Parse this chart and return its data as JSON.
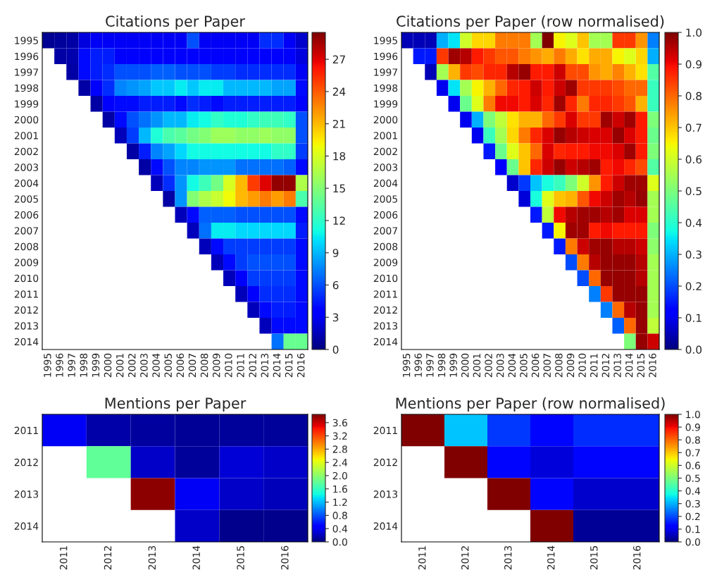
{
  "chart_data": [
    {
      "type": "heatmap",
      "title": "Citations per Paper",
      "categories": [
        "1995",
        "1996",
        "1997",
        "1998",
        "1999",
        "2000",
        "2001",
        "2002",
        "2003",
        "2004",
        "2005",
        "2006",
        "2007",
        "2008",
        "2009",
        "2010",
        "2011",
        "2012",
        "2013",
        "2014",
        "2015",
        "2016"
      ],
      "y_categories": [
        "1995",
        "1996",
        "1997",
        "1998",
        "1999",
        "2000",
        "2001",
        "2002",
        "2003",
        "2004",
        "2005",
        "2006",
        "2007",
        "2008",
        "2009",
        "2010",
        "2011",
        "2012",
        "2013",
        "2014"
      ],
      "cells": [
        [
          0.5,
          0.8,
          1.0,
          2.5,
          3,
          3,
          3,
          3,
          3,
          3,
          3,
          3,
          6,
          3,
          3,
          3,
          3,
          3,
          5,
          5,
          3,
          2
        ],
        [
          null,
          1,
          1.2,
          4,
          4.5,
          4.5,
          3.5,
          3.5,
          3.5,
          3.5,
          3.5,
          3.5,
          3.5,
          3.5,
          3.5,
          3.5,
          3.5,
          3.5,
          3.5,
          3.5,
          3.5,
          2.5
        ],
        [
          null,
          null,
          1,
          4,
          4.5,
          5,
          6,
          6,
          6,
          6.5,
          6.5,
          6,
          6,
          6,
          5.5,
          5.5,
          5,
          5,
          5,
          5,
          5,
          3
        ],
        [
          null,
          null,
          null,
          1,
          3.5,
          5,
          7.5,
          8,
          8.5,
          9.5,
          9.5,
          10.5,
          9.5,
          10.5,
          10.5,
          9,
          9,
          9,
          9,
          8.5,
          8.5,
          4
        ],
        [
          null,
          null,
          null,
          null,
          1,
          3.5,
          4,
          4,
          4.5,
          4.5,
          4.5,
          4,
          5,
          4.5,
          4,
          4.5,
          4.5,
          4.5,
          4.5,
          4.5,
          4.5,
          3.5
        ],
        [
          null,
          null,
          null,
          null,
          null,
          1,
          4,
          6,
          7,
          8,
          9,
          9,
          10.5,
          11,
          12,
          11.5,
          11.5,
          12,
          12.5,
          12.5,
          12,
          6
        ],
        [
          null,
          null,
          null,
          null,
          null,
          null,
          1.5,
          5.5,
          9,
          11.5,
          13,
          13.5,
          14.5,
          15,
          16,
          16,
          15.5,
          15.5,
          16,
          15.5,
          15.5,
          6
        ],
        [
          null,
          null,
          null,
          null,
          null,
          null,
          null,
          1,
          4.5,
          7.5,
          8.5,
          10,
          11,
          11,
          11,
          11,
          11,
          11,
          11,
          12,
          12,
          5.5
        ],
        [
          null,
          null,
          null,
          null,
          null,
          null,
          null,
          null,
          1,
          4,
          6,
          7.5,
          7.5,
          8,
          8,
          8,
          7,
          7,
          7,
          7,
          6.5,
          4
        ],
        [
          null,
          null,
          null,
          null,
          null,
          null,
          null,
          null,
          null,
          1.5,
          5,
          8,
          11,
          12.5,
          14.5,
          18,
          21,
          25,
          27,
          29,
          29,
          16.5
        ],
        [
          null,
          null,
          null,
          null,
          null,
          null,
          null,
          null,
          null,
          null,
          1,
          8,
          15,
          16.5,
          17.5,
          19,
          21,
          22,
          23,
          22,
          23,
          13
        ],
        [
          null,
          null,
          null,
          null,
          null,
          null,
          null,
          null,
          null,
          null,
          null,
          1.5,
          4,
          6.5,
          6.5,
          6.5,
          6,
          6,
          6,
          6,
          6,
          4
        ],
        [
          null,
          null,
          null,
          null,
          null,
          null,
          null,
          null,
          null,
          null,
          null,
          null,
          1.5,
          7,
          10.5,
          10.5,
          10,
          10,
          10,
          10,
          10,
          4.5
        ],
        [
          null,
          null,
          null,
          null,
          null,
          null,
          null,
          null,
          null,
          null,
          null,
          null,
          null,
          1.5,
          4,
          5.5,
          5.5,
          5.5,
          5.5,
          5.5,
          5.5,
          4
        ],
        [
          null,
          null,
          null,
          null,
          null,
          null,
          null,
          null,
          null,
          null,
          null,
          null,
          null,
          null,
          1.5,
          4,
          5.5,
          6,
          6,
          6,
          6,
          4
        ],
        [
          null,
          null,
          null,
          null,
          null,
          null,
          null,
          null,
          null,
          null,
          null,
          null,
          null,
          null,
          null,
          1.5,
          3.5,
          5.5,
          5.5,
          5.5,
          5.5,
          4
        ],
        [
          null,
          null,
          null,
          null,
          null,
          null,
          null,
          null,
          null,
          null,
          null,
          null,
          null,
          null,
          null,
          null,
          1.5,
          3.5,
          5,
          5,
          5,
          4
        ],
        [
          null,
          null,
          null,
          null,
          null,
          null,
          null,
          null,
          null,
          null,
          null,
          null,
          null,
          null,
          null,
          null,
          null,
          1.5,
          4,
          4.5,
          4.5,
          4
        ],
        [
          null,
          null,
          null,
          null,
          null,
          null,
          null,
          null,
          null,
          null,
          null,
          null,
          null,
          null,
          null,
          null,
          null,
          null,
          1.5,
          4,
          4,
          4
        ],
        [
          null,
          null,
          null,
          null,
          null,
          null,
          null,
          null,
          null,
          null,
          null,
          null,
          null,
          null,
          null,
          null,
          null,
          null,
          null,
          7,
          14,
          14
        ]
      ],
      "clim": [
        0,
        29.5
      ],
      "cticks": [
        0,
        3,
        6,
        9,
        12,
        15,
        18,
        21,
        24,
        27
      ]
    },
    {
      "type": "heatmap",
      "title": "Citations per Paper (row normalised)",
      "categories": [
        "1995",
        "1996",
        "1997",
        "1998",
        "1999",
        "2000",
        "2001",
        "2002",
        "2003",
        "2004",
        "2005",
        "2006",
        "2007",
        "2008",
        "2009",
        "2010",
        "2011",
        "2012",
        "2013",
        "2014",
        "2015",
        "2016"
      ],
      "y_categories": [
        "1995",
        "1996",
        "1997",
        "1998",
        "1999",
        "2000",
        "2001",
        "2002",
        "2003",
        "2004",
        "2005",
        "2006",
        "2007",
        "2008",
        "2009",
        "2010",
        "2011",
        "2012",
        "2013",
        "2014"
      ],
      "cells": [
        [
          0.05,
          0.05,
          0.05,
          0.3,
          0.35,
          0.6,
          0.68,
          0.68,
          0.78,
          0.78,
          0.78,
          0.55,
          1.0,
          0.65,
          0.62,
          0.7,
          0.55,
          0.55,
          0.85,
          0.85,
          0.75,
          0.25
        ],
        [
          null,
          0.15,
          0.15,
          0.85,
          0.97,
          0.95,
          0.88,
          0.85,
          0.82,
          0.82,
          0.78,
          0.75,
          0.73,
          0.78,
          0.73,
          0.67,
          0.73,
          0.73,
          0.65,
          0.62,
          0.68,
          0.3
        ],
        [
          null,
          null,
          0.05,
          0.55,
          0.72,
          0.85,
          0.83,
          0.87,
          0.87,
          0.95,
          0.98,
          0.88,
          0.88,
          0.93,
          0.83,
          0.83,
          0.75,
          0.73,
          0.77,
          0.72,
          0.67,
          0.45
        ],
        [
          null,
          null,
          null,
          0.1,
          0.35,
          0.55,
          0.65,
          0.72,
          0.8,
          0.87,
          0.88,
          0.93,
          0.88,
          0.93,
          0.97,
          0.85,
          0.85,
          0.85,
          0.83,
          0.8,
          0.8,
          0.42
        ],
        [
          null,
          null,
          null,
          null,
          0.1,
          0.48,
          0.62,
          0.78,
          0.9,
          0.9,
          0.88,
          0.92,
          0.87,
          0.97,
          0.87,
          0.78,
          0.87,
          0.87,
          0.85,
          0.82,
          0.72,
          0.42
        ],
        [
          null,
          null,
          null,
          null,
          null,
          0.1,
          0.3,
          0.5,
          0.58,
          0.67,
          0.72,
          0.72,
          0.8,
          0.85,
          0.92,
          0.85,
          0.85,
          0.97,
          0.93,
          0.97,
          0.88,
          0.5
        ],
        [
          null,
          null,
          null,
          null,
          null,
          null,
          0.1,
          0.42,
          0.55,
          0.68,
          0.78,
          0.87,
          0.92,
          0.98,
          0.95,
          0.93,
          0.92,
          0.92,
          0.98,
          0.92,
          0.88,
          0.48
        ],
        [
          null,
          null,
          null,
          null,
          null,
          null,
          null,
          0.15,
          0.48,
          0.62,
          0.7,
          0.8,
          0.92,
          0.87,
          0.88,
          0.88,
          0.9,
          0.9,
          0.92,
          0.97,
          0.88,
          0.5
        ],
        [
          null,
          null,
          null,
          null,
          null,
          null,
          null,
          null,
          0.12,
          0.48,
          0.7,
          0.87,
          0.93,
          0.98,
          0.93,
          0.95,
          0.97,
          0.88,
          0.9,
          0.87,
          0.83,
          0.45
        ],
        [
          null,
          null,
          null,
          null,
          null,
          null,
          null,
          null,
          null,
          0.07,
          0.18,
          0.32,
          0.38,
          0.42,
          0.5,
          0.6,
          0.75,
          0.88,
          0.93,
          0.97,
          0.97,
          0.62
        ],
        [
          null,
          null,
          null,
          null,
          null,
          null,
          null,
          null,
          null,
          null,
          0.08,
          0.38,
          0.62,
          0.7,
          0.72,
          0.82,
          0.9,
          0.93,
          0.97,
          0.95,
          0.98,
          0.55
        ],
        [
          null,
          null,
          null,
          null,
          null,
          null,
          null,
          null,
          null,
          null,
          null,
          0.15,
          0.58,
          0.9,
          0.95,
          0.97,
          0.97,
          0.95,
          0.97,
          0.92,
          0.92,
          0.55
        ],
        [
          null,
          null,
          null,
          null,
          null,
          null,
          null,
          null,
          null,
          null,
          null,
          null,
          0.15,
          0.65,
          0.97,
          0.97,
          0.88,
          0.9,
          0.88,
          0.88,
          0.88,
          0.5
        ],
        [
          null,
          null,
          null,
          null,
          null,
          null,
          null,
          null,
          null,
          null,
          null,
          null,
          null,
          0.15,
          0.78,
          0.93,
          0.97,
          0.98,
          0.95,
          0.95,
          0.93,
          0.52
        ],
        [
          null,
          null,
          null,
          null,
          null,
          null,
          null,
          null,
          null,
          null,
          null,
          null,
          null,
          null,
          0.2,
          0.78,
          0.95,
          0.98,
          0.98,
          0.98,
          0.95,
          0.55
        ],
        [
          null,
          null,
          null,
          null,
          null,
          null,
          null,
          null,
          null,
          null,
          null,
          null,
          null,
          null,
          null,
          0.2,
          0.8,
          0.98,
          0.98,
          0.98,
          0.95,
          0.55
        ],
        [
          null,
          null,
          null,
          null,
          null,
          null,
          null,
          null,
          null,
          null,
          null,
          null,
          null,
          null,
          null,
          null,
          0.25,
          0.85,
          0.98,
          0.98,
          0.98,
          0.55
        ],
        [
          null,
          null,
          null,
          null,
          null,
          null,
          null,
          null,
          null,
          null,
          null,
          null,
          null,
          null,
          null,
          null,
          null,
          0.25,
          0.8,
          0.95,
          0.98,
          0.55
        ],
        [
          null,
          null,
          null,
          null,
          null,
          null,
          null,
          null,
          null,
          null,
          null,
          null,
          null,
          null,
          null,
          null,
          null,
          null,
          0.22,
          0.8,
          0.98,
          0.58
        ],
        [
          null,
          null,
          null,
          null,
          null,
          null,
          null,
          null,
          null,
          null,
          null,
          null,
          null,
          null,
          null,
          null,
          null,
          null,
          null,
          0.5,
          0.98,
          0.93
        ]
      ],
      "clim": [
        0,
        1
      ],
      "cticks": [
        {
          "value": 0,
          "label": "0.0"
        },
        {
          "value": 0.1,
          "label": "0.1"
        },
        {
          "value": 0.2,
          "label": "0.2"
        },
        {
          "value": 0.3,
          "label": "0.3"
        },
        {
          "value": 0.4,
          "label": "0.4"
        },
        {
          "value": 0.5,
          "label": "0.5"
        },
        {
          "value": 0.6,
          "label": "0.6"
        },
        {
          "value": 0.7,
          "label": "0.7"
        },
        {
          "value": 0.8,
          "label": "0.8"
        },
        {
          "value": 0.9,
          "label": "0.9"
        },
        {
          "value": 1,
          "label": "1.0"
        }
      ]
    },
    {
      "type": "heatmap",
      "title": "Mentions per Paper",
      "categories": [
        "2011",
        "2012",
        "2013",
        "2014",
        "2015",
        "2016"
      ],
      "y_categories": [
        "2011",
        "2012",
        "2013",
        "2014"
      ],
      "cells": [
        [
          0.4,
          0.15,
          0.12,
          0.08,
          0.1,
          0.1
        ],
        [
          null,
          1.8,
          0.25,
          0.1,
          0.3,
          0.25
        ],
        [
          null,
          null,
          3.8,
          0.4,
          0.25,
          0.2
        ],
        [
          null,
          null,
          null,
          0.25,
          0.05,
          0.05
        ]
      ],
      "clim": [
        0,
        3.85
      ],
      "cticks": [
        {
          "value": 0,
          "label": "0.0"
        },
        {
          "value": 0.4,
          "label": "0.4"
        },
        {
          "value": 0.8,
          "label": "0.8"
        },
        {
          "value": 1.2,
          "label": "1.2"
        },
        {
          "value": 1.6,
          "label": "1.6"
        },
        {
          "value": 2.0,
          "label": "2.0"
        },
        {
          "value": 2.4,
          "label": "2.4"
        },
        {
          "value": 2.8,
          "label": "2.8"
        },
        {
          "value": 3.2,
          "label": "3.2"
        },
        {
          "value": 3.6,
          "label": "3.6"
        }
      ]
    },
    {
      "type": "heatmap",
      "title": "Mentions per Paper (row normalised)",
      "categories": [
        "2011",
        "2012",
        "2013",
        "2014",
        "2015",
        "2016"
      ],
      "y_categories": [
        "2011",
        "2012",
        "2013",
        "2014"
      ],
      "cells": [
        [
          1.0,
          0.32,
          0.18,
          0.13,
          0.17,
          0.17
        ],
        [
          null,
          1.0,
          0.13,
          0.08,
          0.13,
          0.13
        ],
        [
          null,
          null,
          1.0,
          0.13,
          0.07,
          0.07
        ],
        [
          null,
          null,
          null,
          1.0,
          0.02,
          0.02
        ]
      ],
      "clim": [
        0,
        1
      ],
      "cticks": [
        {
          "value": 0,
          "label": "0.0"
        },
        {
          "value": 0.1,
          "label": "0.1"
        },
        {
          "value": 0.2,
          "label": "0.2"
        },
        {
          "value": 0.3,
          "label": "0.3"
        },
        {
          "value": 0.4,
          "label": "0.4"
        },
        {
          "value": 0.5,
          "label": "0.5"
        },
        {
          "value": 0.6,
          "label": "0.6"
        },
        {
          "value": 0.7,
          "label": "0.7"
        },
        {
          "value": 0.8,
          "label": "0.8"
        },
        {
          "value": 0.9,
          "label": "0.9"
        },
        {
          "value": 1,
          "label": "1.0"
        }
      ]
    }
  ]
}
